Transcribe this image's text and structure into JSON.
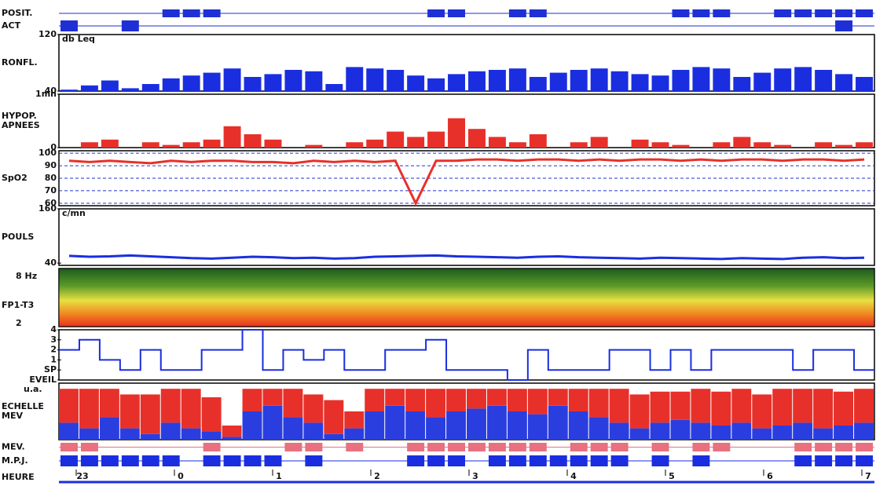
{
  "channels": [
    {
      "type": "events",
      "labels": [
        "POSIT."
      ],
      "color": "#1f2fd6",
      "values": [
        0,
        0,
        0,
        0,
        0,
        1,
        1,
        1,
        0,
        0,
        0,
        0,
        0,
        0,
        0,
        0,
        0,
        0,
        1,
        1,
        0,
        0,
        1,
        1,
        0,
        0,
        0,
        0,
        0,
        0,
        1,
        1,
        1,
        0,
        0,
        1,
        1,
        1,
        1,
        1
      ]
    },
    {
      "type": "events",
      "labels": [
        "ACT"
      ],
      "color": "#1f2fd6",
      "values": [
        1,
        0,
        0,
        1,
        0,
        0,
        0,
        0,
        0,
        0,
        0,
        0,
        0,
        0,
        0,
        0,
        0,
        0,
        0,
        0,
        0,
        0,
        0,
        0,
        0,
        0,
        0,
        0,
        0,
        0,
        0,
        0,
        0,
        0,
        0,
        0,
        0,
        0,
        1,
        0
      ]
    },
    {
      "type": "bars",
      "labels": [
        "RONFL."
      ],
      "unit": "db Leq",
      "ylim": [
        40,
        120
      ],
      "yticks": [
        40,
        120
      ],
      "color": "#1a2ee0",
      "values": [
        42,
        48,
        55,
        44,
        50,
        58,
        62,
        66,
        72,
        60,
        64,
        70,
        68,
        50,
        74,
        72,
        70,
        62,
        58,
        64,
        68,
        70,
        72,
        60,
        66,
        70,
        72,
        68,
        64,
        62,
        70,
        74,
        72,
        60,
        66,
        72,
        74,
        70,
        64,
        60
      ]
    },
    {
      "type": "bars",
      "labels": [
        "HYPOP.",
        "APNEES"
      ],
      "ylim": [
        0,
        1
      ],
      "yticks": [
        {
          "value": 0,
          "label": ".0"
        },
        {
          "value": 1,
          "label": "1mn"
        }
      ],
      "color": "#e8302a",
      "values": [
        0,
        0.1,
        0.15,
        0,
        0.1,
        0.05,
        0.1,
        0.15,
        0.4,
        0.25,
        0.15,
        0,
        0.05,
        0,
        0.1,
        0.15,
        0.3,
        0.2,
        0.3,
        0.55,
        0.35,
        0.2,
        0.1,
        0.25,
        0,
        0.1,
        0.2,
        0,
        0.15,
        0.1,
        0.05,
        0,
        0.1,
        0.2,
        0.1,
        0.05,
        0,
        0.1,
        0.05,
        0.1
      ]
    },
    {
      "type": "line",
      "labels": [
        "SpO2"
      ],
      "ylim": [
        58,
        102
      ],
      "yticks": [
        60,
        70,
        80,
        90,
        100
      ],
      "grid": true,
      "color": "#e8302a",
      "values": [
        94,
        93,
        94,
        93,
        92,
        94,
        93,
        94,
        94,
        93,
        93,
        92,
        94,
        93,
        94,
        93,
        94,
        60,
        94,
        94,
        95,
        95,
        94,
        95,
        95,
        94,
        95,
        94,
        95,
        95,
        94,
        95,
        94,
        95,
        95,
        94,
        95,
        95,
        94,
        95
      ]
    },
    {
      "type": "line",
      "labels": [
        "POULS"
      ],
      "unit": "c/mn",
      "ylim": [
        35,
        160
      ],
      "yticks": [
        40,
        160
      ],
      "color": "#1a2ee0",
      "values": [
        56,
        54,
        55,
        57,
        55,
        53,
        51,
        50,
        52,
        54,
        53,
        51,
        52,
        50,
        51,
        54,
        55,
        56,
        57,
        55,
        54,
        53,
        52,
        54,
        55,
        53,
        52,
        51,
        50,
        52,
        51,
        50,
        49,
        51,
        50,
        49,
        52,
        53,
        51,
        52
      ]
    },
    {
      "type": "spectrum",
      "labels": [
        "8 Hz",
        "FP1-T3",
        "2"
      ]
    },
    {
      "type": "step",
      "labels": [],
      "ylim": [
        0,
        5
      ],
      "yticks": [
        {
          "value": 0,
          "label": "EVEIL"
        },
        {
          "value": 1,
          "label": "SP"
        },
        {
          "value": 2,
          "label": "1"
        },
        {
          "value": 3,
          "label": "2"
        },
        {
          "value": 4,
          "label": "3"
        },
        {
          "value": 5,
          "label": "4"
        }
      ],
      "color": "#1a2ee0",
      "values": [
        3,
        4,
        2,
        1,
        3,
        1,
        1,
        3,
        3,
        5,
        1,
        3,
        2,
        3,
        1,
        1,
        3,
        3,
        4,
        1,
        1,
        1,
        0,
        3,
        1,
        1,
        1,
        3,
        3,
        1,
        3,
        1,
        3,
        3,
        3,
        3,
        1,
        3,
        3,
        1
      ]
    },
    {
      "type": "stack",
      "labels": [
        "ECHELLE",
        "MEV"
      ],
      "unit": "u.a.",
      "ylim": [
        0,
        1
      ],
      "series": [
        {
          "color": "#2a3ee0",
          "values": [
            0.3,
            0.2,
            0.4,
            0.2,
            0.1,
            0.3,
            0.2,
            0.15,
            0.05,
            0.5,
            0.6,
            0.4,
            0.3,
            0.1,
            0.2,
            0.5,
            0.6,
            0.5,
            0.4,
            0.5,
            0.55,
            0.6,
            0.5,
            0.45,
            0.6,
            0.5,
            0.4,
            0.3,
            0.2,
            0.3,
            0.35,
            0.3,
            0.25,
            0.3,
            0.2,
            0.25,
            0.3,
            0.2,
            0.25,
            0.3
          ]
        },
        {
          "color": "#e8302a",
          "values": [
            0.6,
            0.7,
            0.5,
            0.6,
            0.7,
            0.6,
            0.7,
            0.6,
            0.2,
            0.4,
            0.3,
            0.5,
            0.5,
            0.6,
            0.3,
            0.4,
            0.3,
            0.4,
            0.5,
            0.4,
            0.35,
            0.3,
            0.4,
            0.45,
            0.3,
            0.4,
            0.5,
            0.6,
            0.6,
            0.55,
            0.5,
            0.6,
            0.6,
            0.6,
            0.6,
            0.65,
            0.6,
            0.7,
            0.6,
            0.6
          ]
        }
      ]
    },
    {
      "type": "events",
      "labels": [
        "MEV."
      ],
      "color": "#e8707f",
      "values": [
        1,
        1,
        0,
        0,
        0,
        0,
        0,
        1,
        0,
        0,
        0,
        1,
        1,
        0,
        1,
        0,
        0,
        1,
        1,
        1,
        1,
        1,
        1,
        1,
        0,
        1,
        1,
        1,
        0,
        1,
        0,
        1,
        1,
        0,
        0,
        0,
        1,
        1,
        1,
        1
      ]
    },
    {
      "type": "events",
      "labels": [
        "M.P.J."
      ],
      "color": "#1a2ee0",
      "values": [
        1,
        1,
        1,
        1,
        1,
        1,
        0,
        1,
        1,
        1,
        1,
        0,
        1,
        0,
        0,
        0,
        0,
        1,
        1,
        1,
        0,
        1,
        1,
        1,
        1,
        1,
        1,
        1,
        0,
        1,
        0,
        1,
        0,
        0,
        0,
        0,
        1,
        1,
        1,
        1
      ]
    }
  ],
  "time_axis": {
    "label": "HEURE",
    "ticks": [
      "23",
      "0",
      "1",
      "2",
      "3",
      "4",
      "5",
      "6",
      "7"
    ]
  }
}
